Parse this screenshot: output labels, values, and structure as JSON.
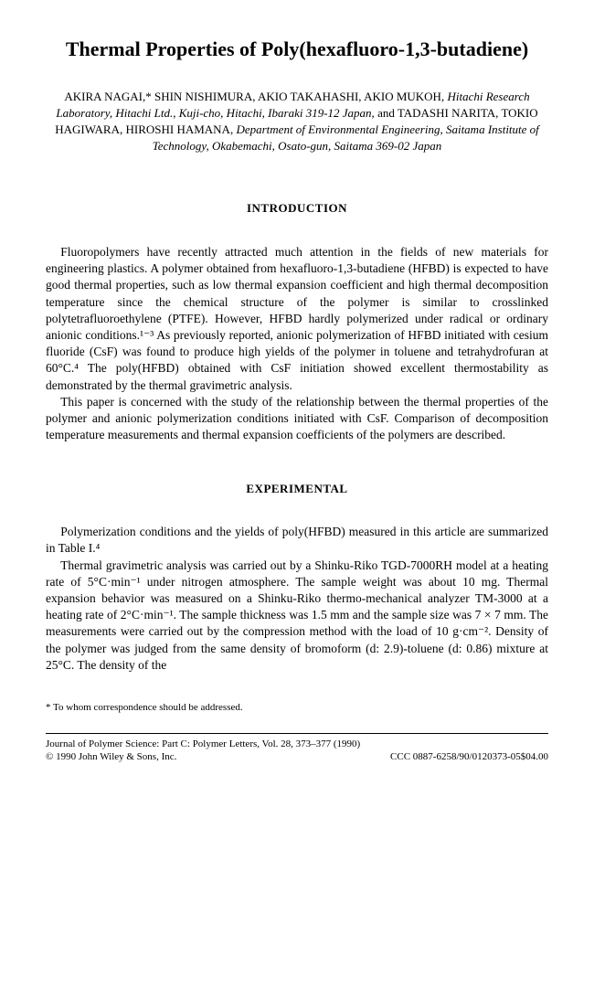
{
  "title": "Thermal Properties of Poly(hexafluoro-1,3-butadiene)",
  "authors_html": "AKIRA NAGAI,* SHIN NISHIMURA, AKIO TAKAHASHI, AKIO MUKOH, <span class=\"affil\">Hitachi Research Laboratory, Hitachi Ltd., Kuji-cho, Hitachi, Ibaraki 319-12 Japan,</span> and TADASHI NARITA, TOKIO HAGIWARA, HIROSHI HAMANA, <span class=\"affil\">Department of Environmental Engineering, Saitama Institute of Technology, Okabemachi, Osato-gun, Saitama 369-02 Japan</span>",
  "sections": {
    "introduction": {
      "heading": "INTRODUCTION",
      "paragraphs": [
        "Fluoropolymers have recently attracted much attention in the fields of new materials for engineering plastics. A polymer obtained from hexafluoro-1,3-butadiene (HFBD) is expected to have good thermal properties, such as low thermal expansion coefficient and high thermal decomposition temperature since the chemical structure of the polymer is similar to crosslinked polytetrafluoroethylene (PTFE). However, HFBD hardly polymerized under radical or ordinary anionic conditions.¹⁻³ As previously reported, anionic polymerization of HFBD initiated with cesium fluoride (CsF) was found to produce high yields of the polymer in toluene and tetrahydrofuran at 60°C.⁴ The poly(HFBD) obtained with CsF initiation showed excellent thermostability as demonstrated by the thermal gravimetric analysis.",
        "This paper is concerned with the study of the relationship between the thermal properties of the polymer and anionic polymerization conditions initiated with CsF. Comparison of decomposition temperature measurements and thermal expansion coefficients of the polymers are described."
      ]
    },
    "experimental": {
      "heading": "EXPERIMENTAL",
      "paragraphs": [
        "Polymerization conditions and the yields of poly(HFBD) measured in this article are summarized in Table I.⁴",
        "Thermal gravimetric analysis was carried out by a Shinku-Riko TGD-7000RH model at a heating rate of 5°C·min⁻¹ under nitrogen atmosphere. The sample weight was about 10 mg. Thermal expansion behavior was measured on a Shinku-Riko thermo-mechanical analyzer TM-3000 at a heating rate of 2°C·min⁻¹. The sample thickness was 1.5 mm and the sample size was 7 × 7 mm. The measurements were carried out by the compression method with the load of 10 g·cm⁻². Density of the polymer was judged from the same density of bromoform (d: 2.9)-toluene (d: 0.86) mixture at 25°C. The density of the"
      ]
    }
  },
  "footnote": "* To whom correspondence should be addressed.",
  "footer": {
    "line1": "Journal of Polymer Science: Part C: Polymer Letters, Vol. 28, 373–377 (1990)",
    "line2_left": "© 1990 John Wiley & Sons, Inc.",
    "line2_right": "CCC 0887-6258/90/0120373-05$04.00"
  }
}
